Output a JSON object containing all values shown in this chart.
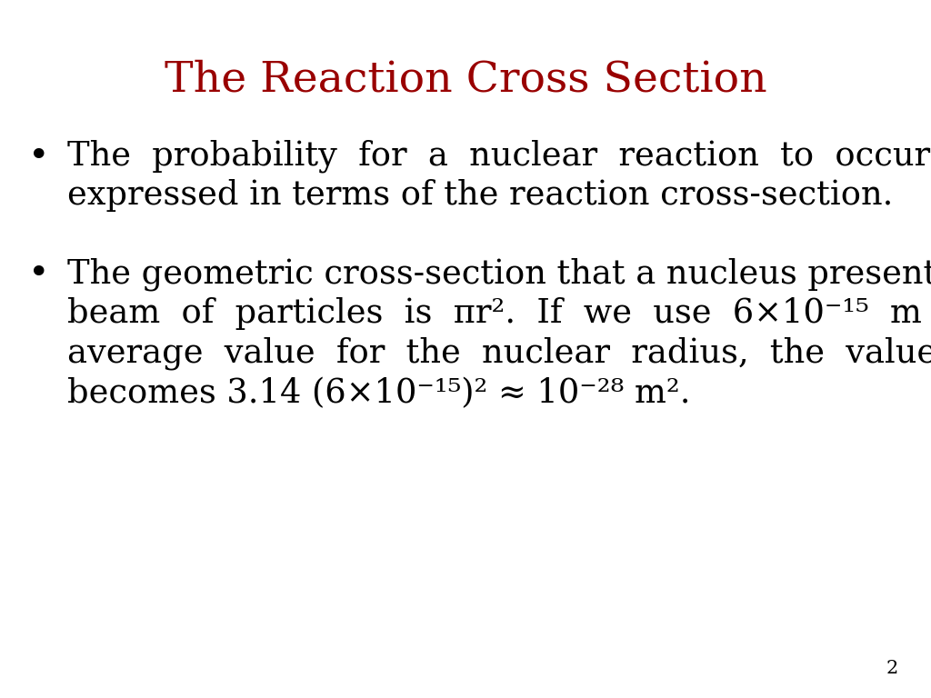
{
  "title": "The Reaction Cross Section",
  "title_color": "#990000",
  "title_fontsize": 34,
  "background_color": "#ffffff",
  "text_color": "#000000",
  "page_number": "2",
  "body_fontsize": 26.5
}
